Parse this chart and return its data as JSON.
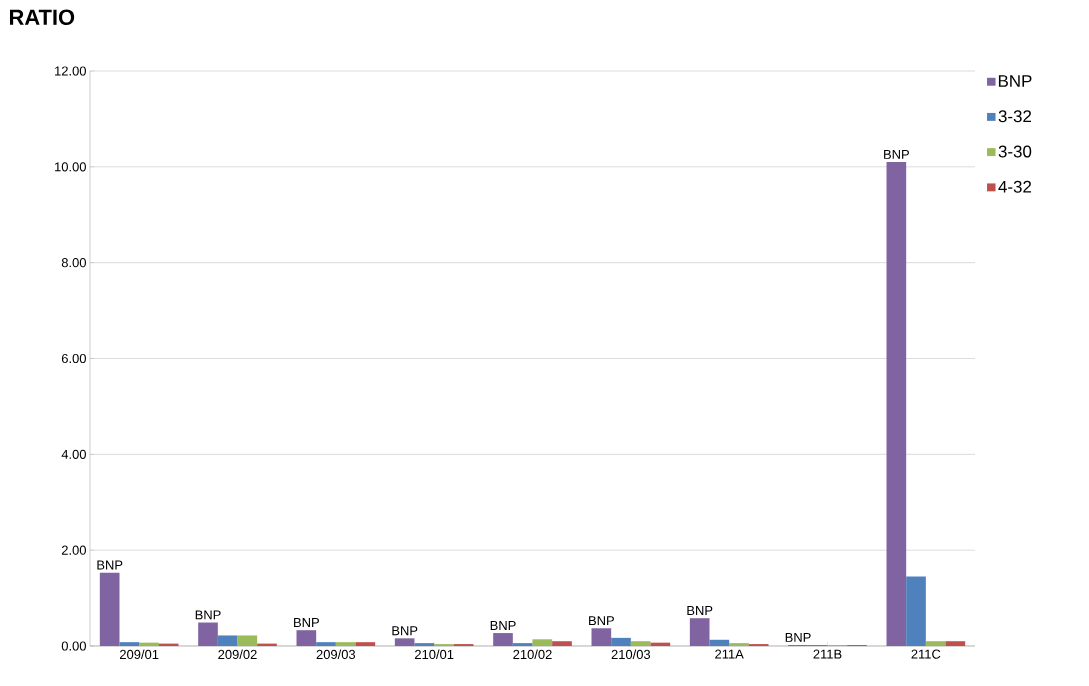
{
  "chart_data": {
    "type": "bar",
    "title": "RATIO",
    "categories": [
      "209/01",
      "209/02",
      "209/03",
      "210/01",
      "210/02",
      "210/03",
      "211A",
      "211B",
      "211C"
    ],
    "series": [
      {
        "name": "BNP",
        "color": "#8064a2",
        "values": [
          1.53,
          0.49,
          0.33,
          0.16,
          0.27,
          0.37,
          0.58,
          0.02,
          10.1
        ],
        "value_labels": [
          "BNP",
          "BNP",
          "BNP",
          "BNP",
          "BNP",
          "BNP",
          "BNP",
          "BNP",
          "BNP"
        ]
      },
      {
        "name": "3-32",
        "color": "#4f81bd",
        "values": [
          0.08,
          0.22,
          0.08,
          0.06,
          0.06,
          0.17,
          0.13,
          0.02,
          1.45
        ]
      },
      {
        "name": "3-30",
        "color": "#9bbb59",
        "values": [
          0.07,
          0.22,
          0.08,
          0.04,
          0.14,
          0.1,
          0.06,
          0.02,
          0.1
        ]
      },
      {
        "name": "4-32",
        "color": "#c0504d",
        "values": [
          0.05,
          0.05,
          0.08,
          0.04,
          0.1,
          0.07,
          0.04,
          0.02,
          0.1
        ]
      }
    ],
    "ylim": [
      0,
      12
    ],
    "yticks": [
      {
        "value": 0,
        "label": "0.00"
      },
      {
        "value": 2,
        "label": "2.00"
      },
      {
        "value": 4,
        "label": "4.00"
      },
      {
        "value": 6,
        "label": "6.00"
      },
      {
        "value": 8,
        "label": "8.00"
      },
      {
        "value": 10,
        "label": "10.00"
      },
      {
        "value": 12,
        "label": "12.00"
      }
    ],
    "grid": "y",
    "legend": "top right"
  }
}
